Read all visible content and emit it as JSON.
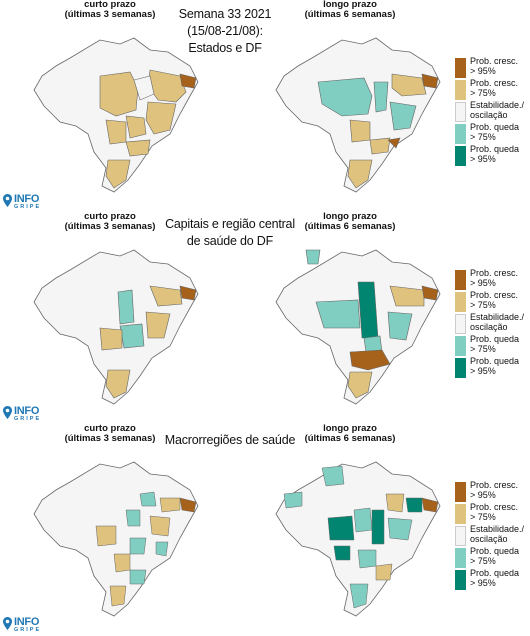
{
  "header": {
    "short_term": "curto prazo\n(últimas 3 semanas)",
    "long_term": "longo prazo\n(últimas 6 semanas)",
    "main_title": "Semana 33 2021\n(15/08-21/08):\nEstados e DF"
  },
  "panels": [
    {
      "title": "Semana 33 2021\n(15/08-21/08):\nEstados e DF",
      "left_label": "curto prazo\n(últimas 3 semanas)",
      "right_label": "longo prazo\n(últimas 6 semanas)"
    },
    {
      "title": "Capitais e região central\nde saúde do DF",
      "left_label": "curto prazo\n(últimas 3 semanas)",
      "right_label": "longo prazo\n(últimas 6 semanas)"
    },
    {
      "title": "Macrorregiões de saúde",
      "left_label": "curto prazo\n(últimas 3 semanas)",
      "right_label": "longo prazo\n(últimas 6 semanas)"
    }
  ],
  "legend": [
    {
      "label": "Prob. cresc.\n> 95%",
      "color": "#a6611a"
    },
    {
      "label": "Prob. cresc.\n> 75%",
      "color": "#dfc27d"
    },
    {
      "label": "Estabilidade./\noscilação",
      "color": "#f5f5f5"
    },
    {
      "label": "Prob. queda\n> 75%",
      "color": "#80cdc1"
    },
    {
      "label": "Prob. queda\n> 95%",
      "color": "#018571"
    }
  ],
  "logo": {
    "line1": "INFO",
    "line2": "GRIPE",
    "color": "#1f78b4"
  }
}
